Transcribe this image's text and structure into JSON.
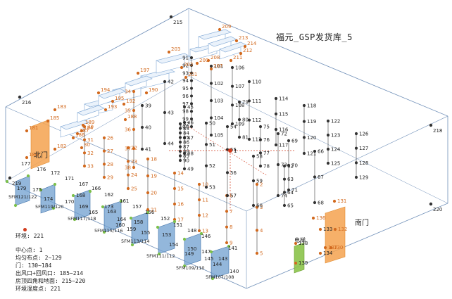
{
  "title": "福元_GSP发货库_5",
  "legend": {
    "ambient": "环境:  221",
    "lines": [
      "中心点: 1",
      "均匀布点: 2~129",
      "门: 130~184",
      "出风口+回风口: 185~214",
      "房顶四角和地面: 215~220",
      "环境湿度点: 221"
    ]
  },
  "labels": {
    "north_door": "北门",
    "south_door": "南门",
    "elevator": "电梯"
  },
  "colors": {
    "probe_dark": "#333333",
    "probe_orange": "#d2691e",
    "probe_green": "#7cc04b",
    "label_orange": "#d2691e",
    "box_blue": "#6f9fcf",
    "door_orange": "#f4a24f",
    "elevator_green": "#8bc34a"
  },
  "units": [
    {
      "label": "5FM121/122"
    },
    {
      "label": "5FM119/120"
    },
    {
      "label": "5FM117/118"
    },
    {
      "label": "5FM115/116"
    },
    {
      "label": "5FM113/114"
    },
    {
      "label": "5FM111/112"
    },
    {
      "label": "5FM109/110"
    },
    {
      "label": "5FM107/108"
    }
  ]
}
